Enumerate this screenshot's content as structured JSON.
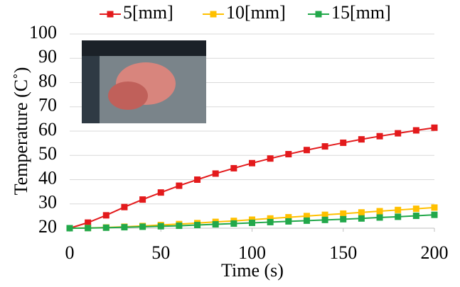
{
  "chart_data": {
    "type": "line",
    "x_label": "Time (s)",
    "y_label": "Temperature (C˚)",
    "x": [
      0,
      10,
      20,
      30,
      40,
      50,
      60,
      70,
      80,
      90,
      100,
      110,
      120,
      130,
      140,
      150,
      160,
      170,
      180,
      190,
      200
    ],
    "series": [
      {
        "name": "5[mm]",
        "color": "#e31a1c",
        "values": [
          20,
          22.3,
          25.3,
          28.7,
          31.8,
          34.7,
          37.5,
          40,
          42.5,
          44.7,
          46.8,
          48.7,
          50.5,
          52.2,
          53.7,
          55.2,
          56.6,
          57.9,
          59.1,
          60.3,
          61.4
        ]
      },
      {
        "name": "10[mm]",
        "color": "#ffc000",
        "values": [
          20,
          20.1,
          20.3,
          20.6,
          20.9,
          21.3,
          21.7,
          22.1,
          22.6,
          23,
          23.5,
          24,
          24.5,
          25,
          25.5,
          26,
          26.5,
          27,
          27.5,
          28,
          28.5
        ]
      },
      {
        "name": "15[mm]",
        "color": "#22a84a",
        "values": [
          20,
          20.05,
          20.2,
          20.4,
          20.6,
          20.8,
          21,
          21.3,
          21.6,
          21.9,
          22.2,
          22.5,
          22.8,
          23.1,
          23.4,
          23.7,
          24,
          24.4,
          24.7,
          25.1,
          25.5
        ]
      }
    ],
    "xlim": [
      0,
      200
    ],
    "xticks": [
      0,
      50,
      100,
      150,
      200
    ],
    "ylim": [
      20,
      100
    ],
    "yticks": [
      20,
      30,
      40,
      50,
      60,
      70,
      80,
      90,
      100
    ],
    "grid": true,
    "legend": "top"
  }
}
